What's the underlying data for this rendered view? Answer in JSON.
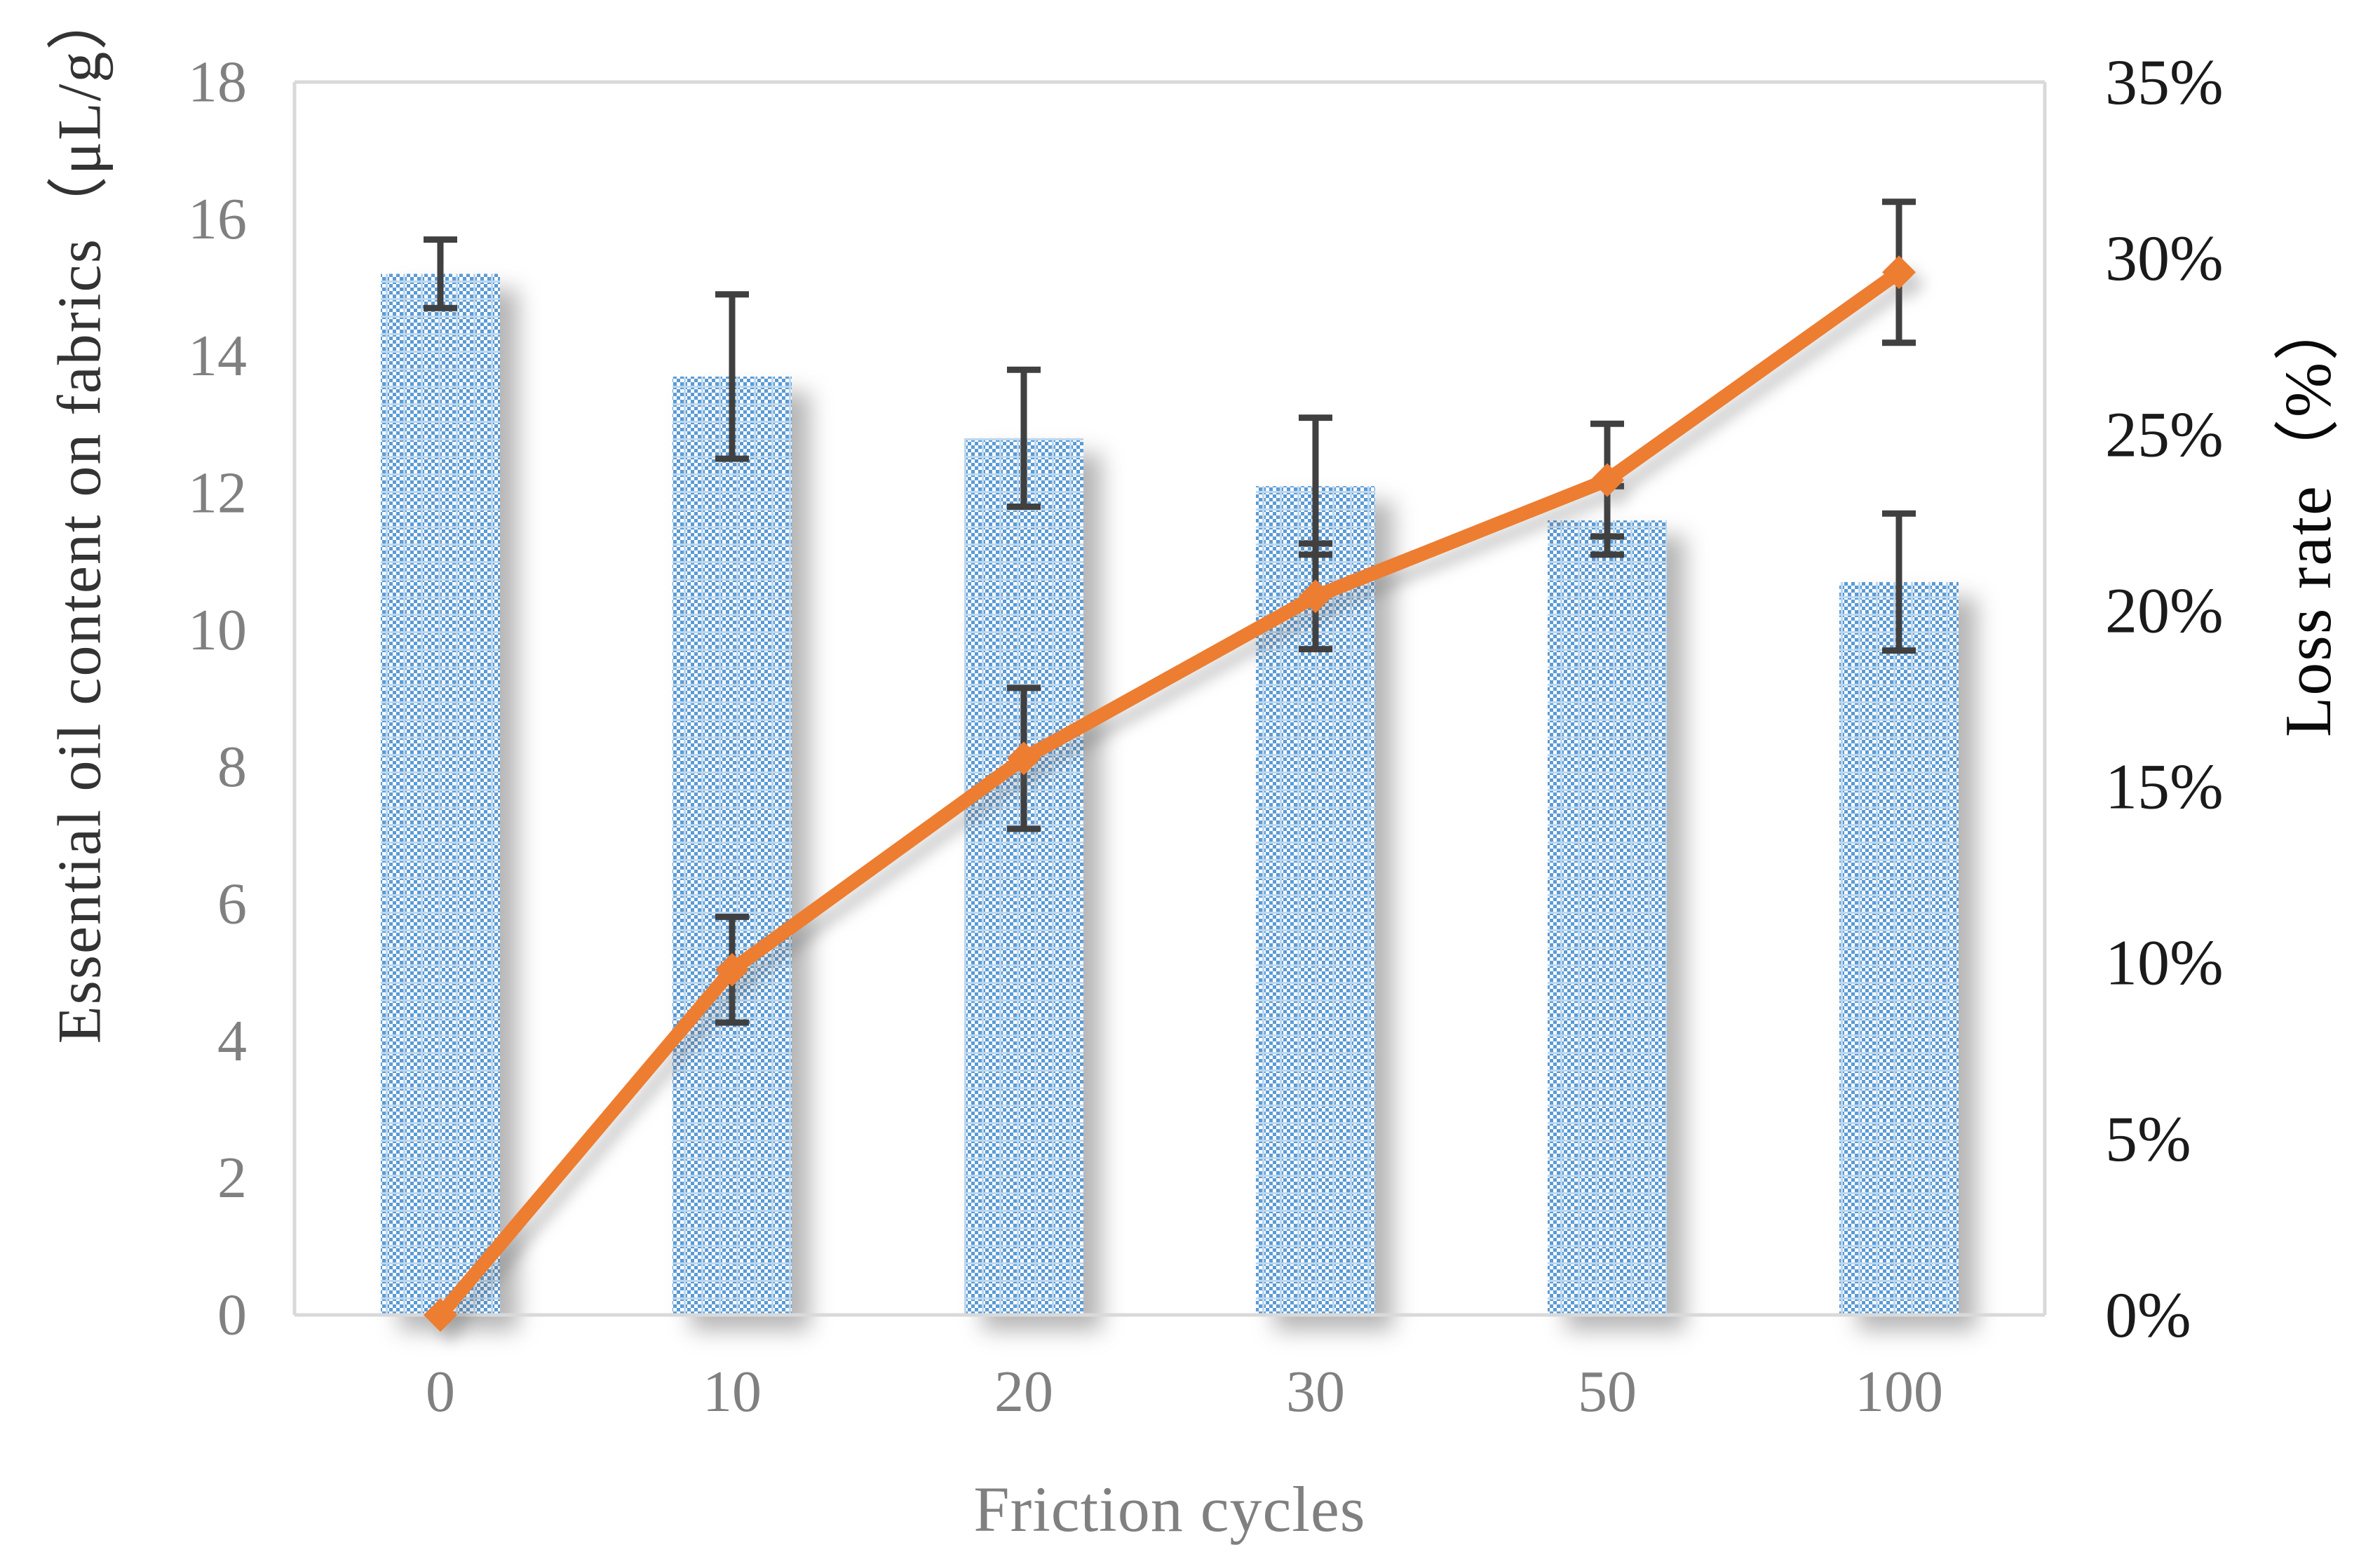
{
  "chart_data": {
    "type": "bar",
    "subtype": "bar-line-combo-dual-axis",
    "categories": [
      "0",
      "10",
      "20",
      "30",
      "50",
      "100"
    ],
    "series": [
      {
        "name": "Essential oil content on fabrics",
        "render": "bar",
        "axis": "left",
        "values": [
          15.2,
          13.7,
          12.8,
          12.1,
          11.6,
          10.7
        ],
        "errors": [
          0.5,
          1.2,
          1.0,
          1.0,
          0.5,
          1.0
        ]
      },
      {
        "name": "Loss rate",
        "render": "line",
        "axis": "right",
        "values_pct": [
          0,
          9.8,
          15.8,
          20.4,
          23.7,
          29.6
        ],
        "errors_pct": [
          0,
          1.5,
          2.0,
          1.5,
          1.6,
          2.0
        ]
      }
    ],
    "left_axis": {
      "title": "Essential oil content on fabrics（μL/g）",
      "min": 0,
      "max": 18,
      "step": 2,
      "ticks": [
        "18",
        "16",
        "14",
        "12",
        "10",
        "8",
        "6",
        "4",
        "2",
        "0"
      ]
    },
    "right_axis": {
      "title": "Loss rate（%）",
      "min": 0,
      "max": 35,
      "step": 5,
      "ticks": [
        "35%",
        "30%",
        "25%",
        "20%",
        "15%",
        "10%",
        "5%",
        "0%"
      ]
    },
    "x_axis": {
      "title": "Friction cycles",
      "tick_labels": [
        "0",
        "10",
        "20",
        "30",
        "50",
        "100"
      ]
    },
    "colors": {
      "bar_dot_blue": "#5B9BD5",
      "bar_light_blue": "#BDD7EE",
      "line_orange": "#ED7D31",
      "error_bar": "#404040",
      "axis_line": "#D9D9D9",
      "tick_gray": "#808080",
      "right_tick_black": "#1a1a1a"
    },
    "legend": "none",
    "grid": "off"
  }
}
